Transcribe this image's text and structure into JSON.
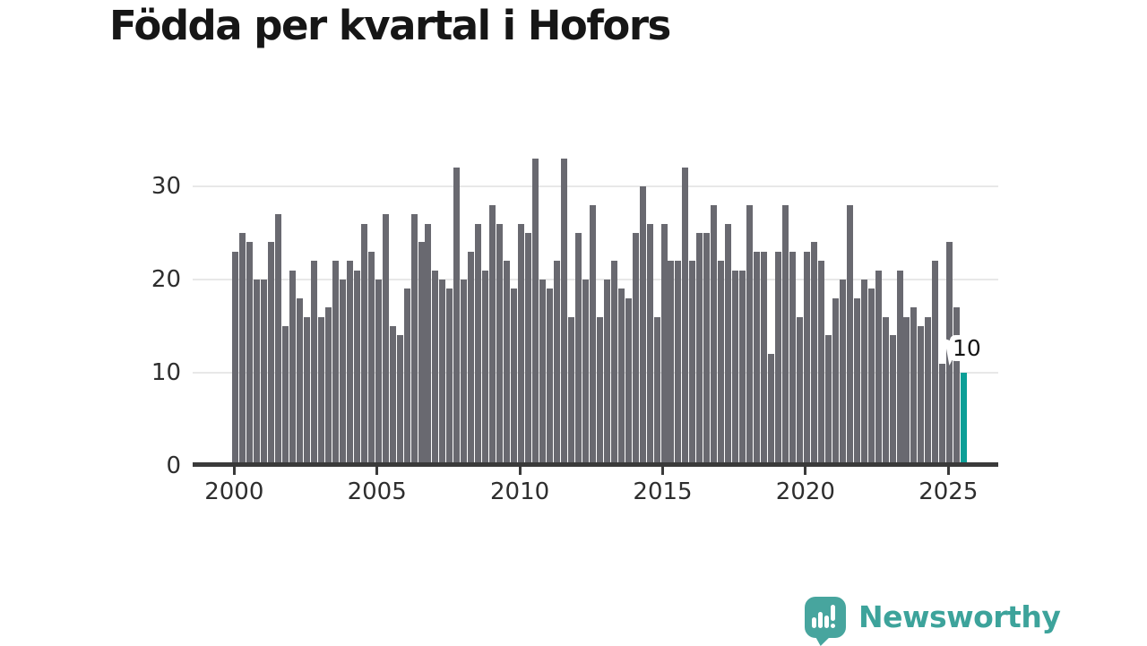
{
  "title": "Födda per kvartal i Hofors",
  "chart_data": {
    "type": "bar",
    "title": "Födda per kvartal i Hofors",
    "series_name": "Födda per kvartal",
    "start_quarter": "2000-Q1",
    "end_quarter": "2025-Q3",
    "values": [
      23,
      25,
      24,
      20,
      20,
      24,
      27,
      15,
      21,
      18,
      16,
      22,
      16,
      17,
      22,
      20,
      22,
      21,
      26,
      23,
      20,
      27,
      15,
      14,
      19,
      27,
      24,
      26,
      21,
      20,
      19,
      32,
      20,
      23,
      26,
      21,
      28,
      26,
      22,
      19,
      26,
      25,
      33,
      20,
      19,
      22,
      33,
      16,
      25,
      20,
      28,
      16,
      20,
      22,
      19,
      18,
      25,
      30,
      26,
      16,
      26,
      22,
      22,
      32,
      22,
      25,
      25,
      28,
      22,
      26,
      21,
      21,
      28,
      23,
      23,
      12,
      23,
      28,
      23,
      16,
      23,
      24,
      22,
      14,
      18,
      20,
      28,
      18,
      20,
      19,
      21,
      16,
      14,
      21,
      16,
      17,
      15,
      16,
      22,
      11,
      24,
      17,
      10
    ],
    "x_tick_labels": [
      "2000",
      "2005",
      "2010",
      "2015",
      "2020",
      "2025"
    ],
    "y_tick_labels": [
      "0",
      "10",
      "20",
      "30"
    ],
    "ylim": [
      0,
      34
    ],
    "grid": true,
    "legend": "none",
    "bar_color": "#696970",
    "highlight": {
      "index": 102,
      "quarter": "2025-Q3",
      "value": 10,
      "label": "10",
      "color": "#0c9f97"
    }
  },
  "branding": {
    "logo_text": "Newsworthy",
    "logo_color": "#3da39b",
    "logo_mark": "speech-bubble-with-bar-chart-and-exclamation"
  }
}
